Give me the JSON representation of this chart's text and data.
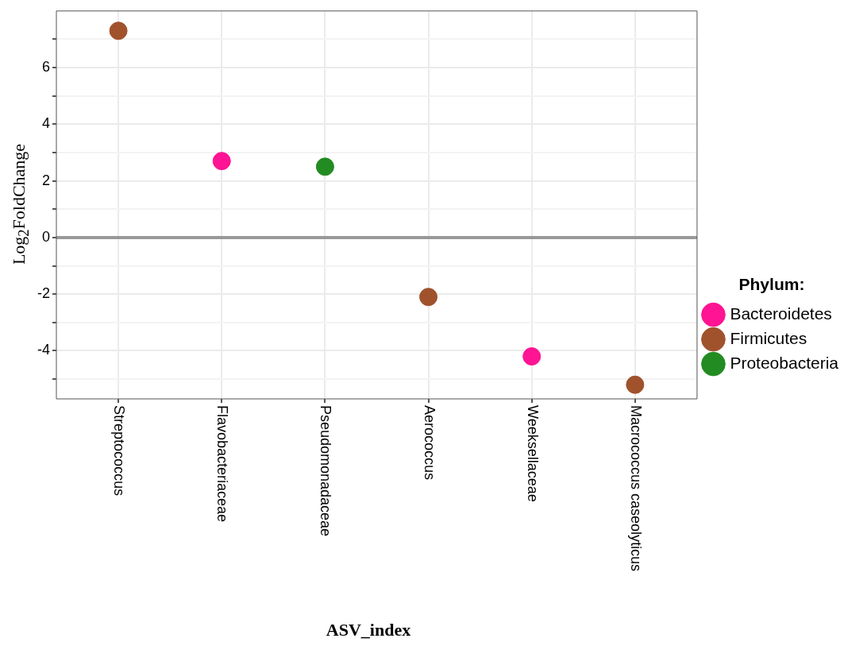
{
  "chart_data": {
    "type": "scatter",
    "xlabel": "ASV_index",
    "ylabel": "Log$_{2}$FoldChange",
    "legend_title": "Phylum:",
    "categories": [
      "Streptococcus",
      "Flavobacteriaceae",
      "Pseudomonadaceae",
      "Aerococcus",
      "Weeksellaceae",
      "Macrococcus caseolyticus"
    ],
    "series": [
      {
        "name": "Bacteroidetes",
        "color": "#ff1493",
        "values": [
          null,
          2.7,
          null,
          null,
          -4.2,
          null
        ]
      },
      {
        "name": "Firmicutes",
        "color": "#a0522d",
        "values": [
          7.3,
          null,
          null,
          -2.1,
          null,
          -5.2
        ]
      },
      {
        "name": "Proteobacteria",
        "color": "#228b22",
        "values": [
          null,
          null,
          2.5,
          null,
          null,
          null
        ]
      }
    ],
    "ylim": [
      -5.7,
      8
    ],
    "yticks": [
      {
        "value": -5,
        "label": null
      },
      -4,
      {
        "value": -3,
        "label": null
      },
      -2,
      {
        "value": -1,
        "label": null
      },
      0,
      {
        "value": 1,
        "label": null
      },
      2,
      {
        "value": 3,
        "label": null
      },
      4,
      {
        "value": 5,
        "label": null
      },
      6,
      {
        "value": 7,
        "label": null
      }
    ],
    "ref_lines": [
      {
        "axis": "y",
        "value": 0,
        "color": "#999999"
      }
    ],
    "grid": true,
    "legend": "right",
    "marker": "circle"
  }
}
